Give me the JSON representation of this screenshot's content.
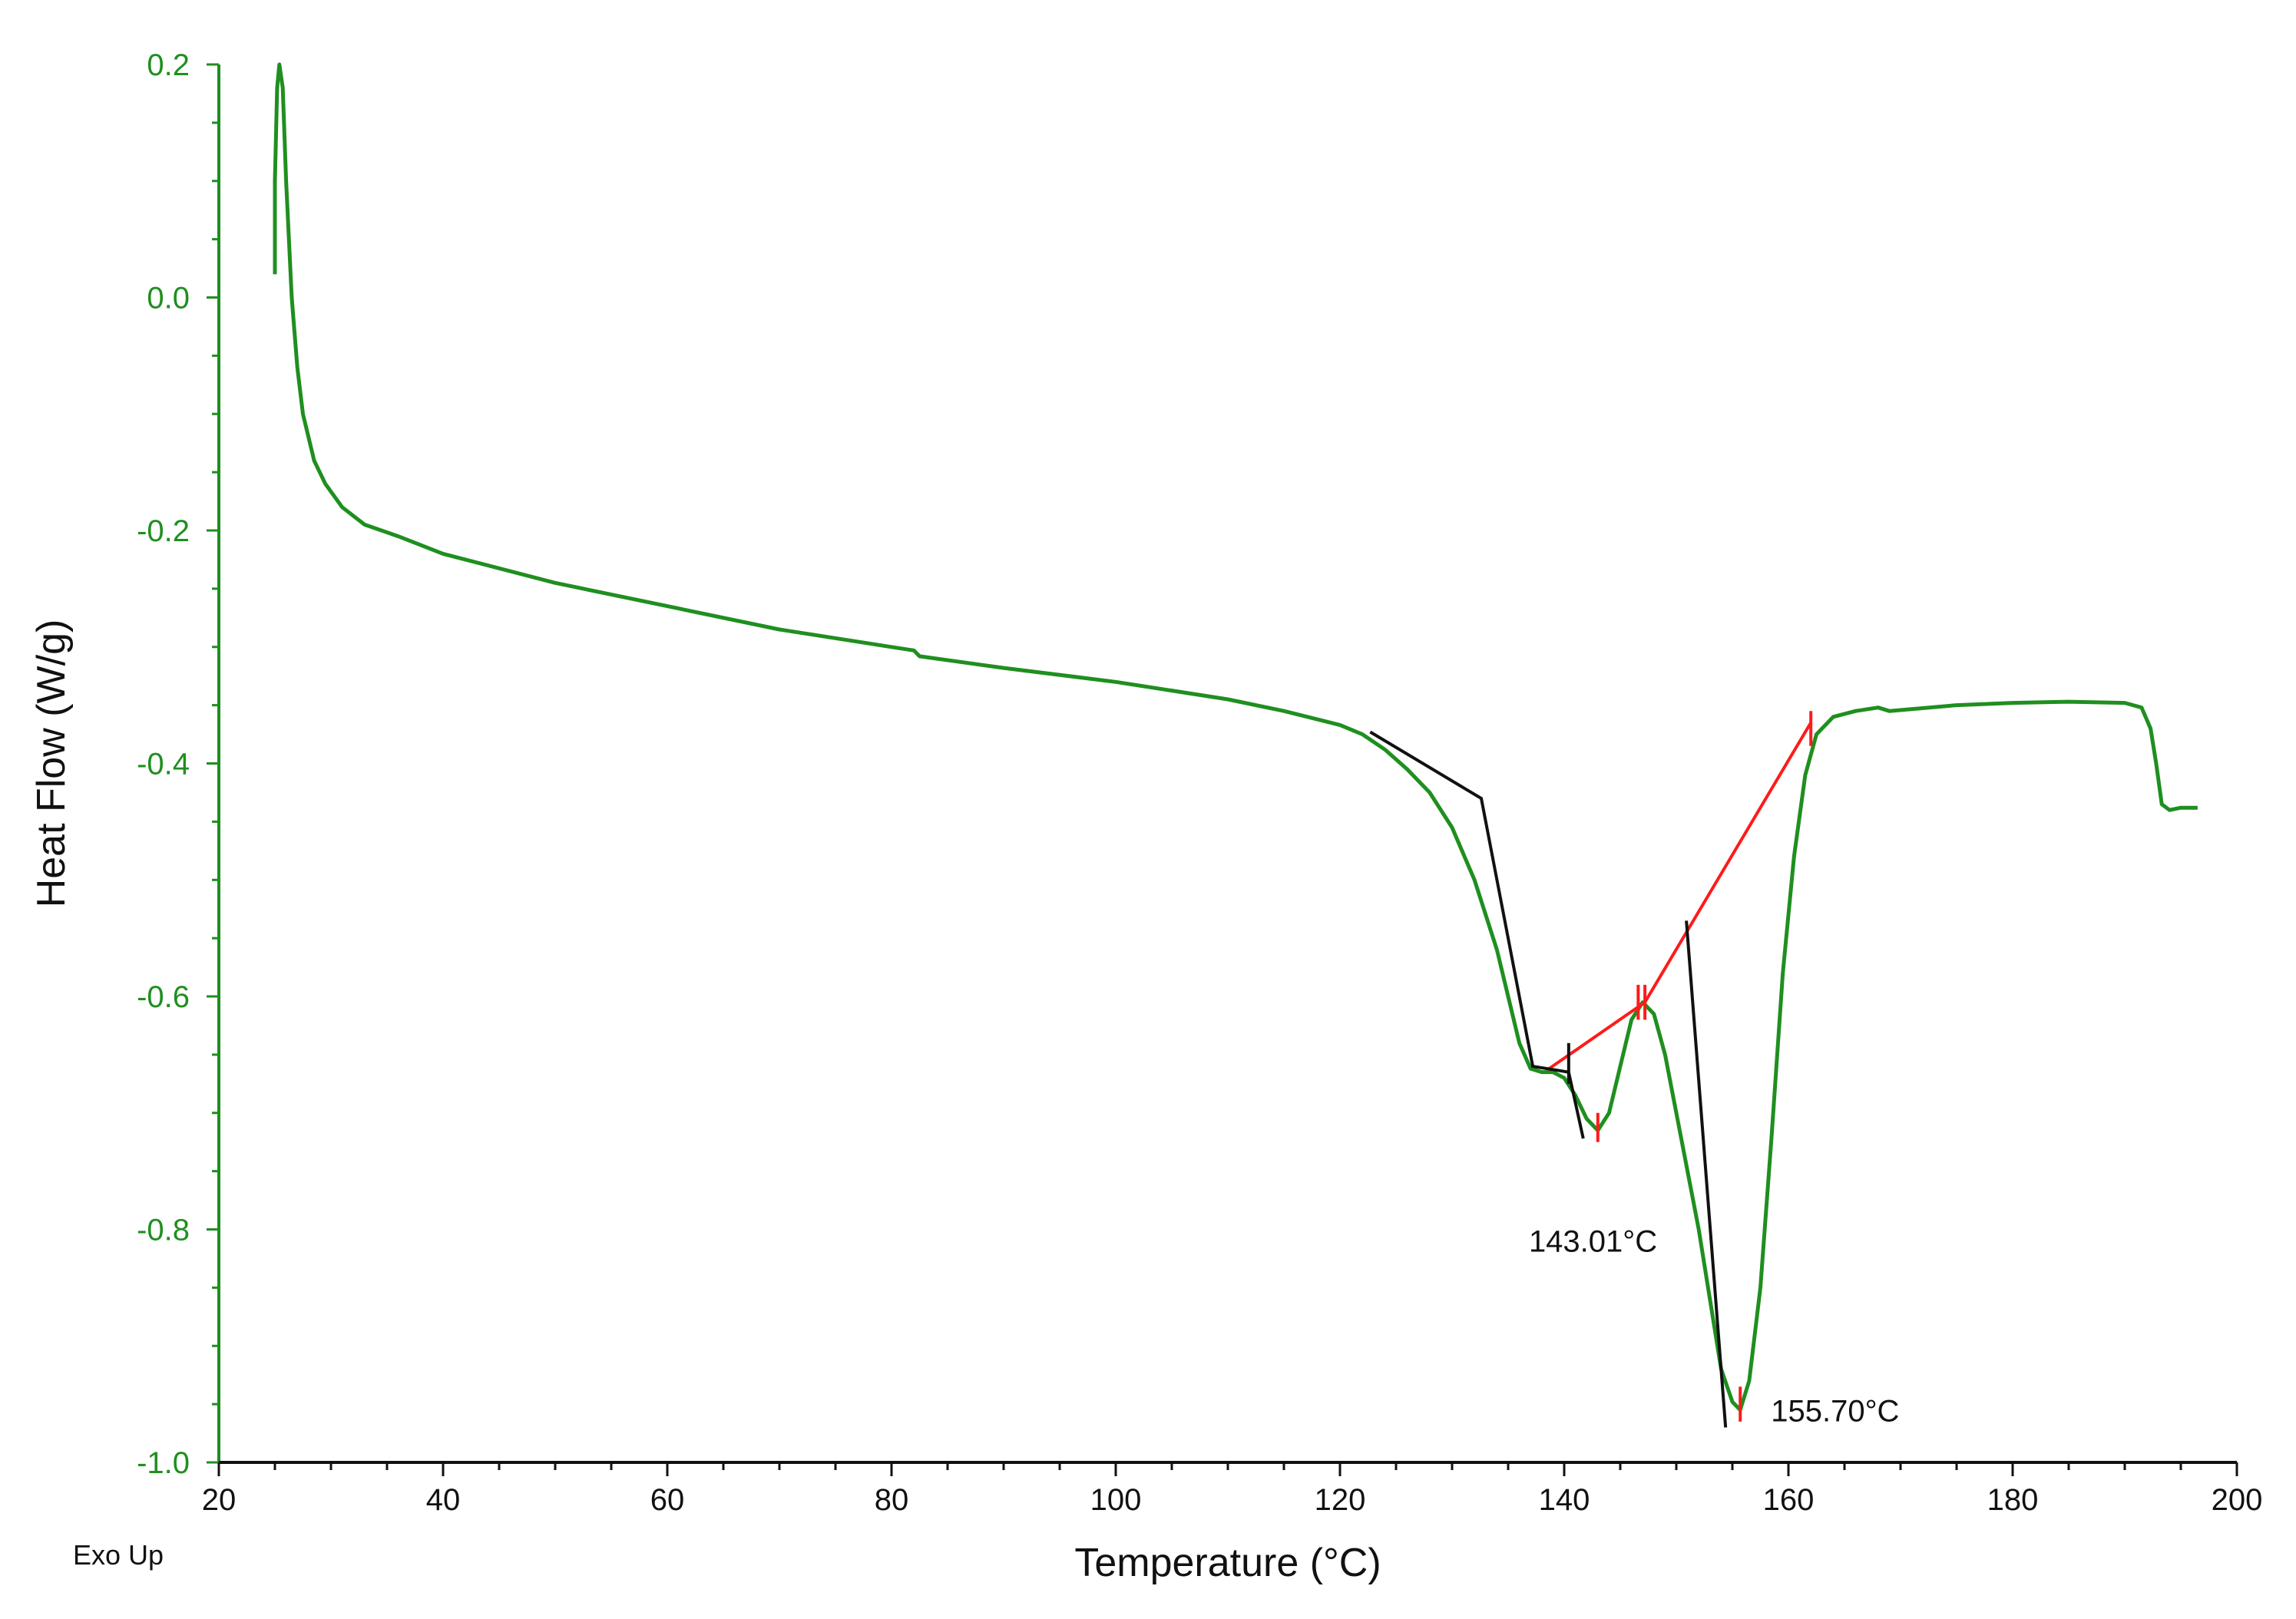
{
  "chart_data": {
    "type": "line",
    "title": "",
    "xlabel": "Temperature (°C)",
    "ylabel": "Heat Flow (W/g)",
    "corner_note": "Exo Up",
    "xlim": [
      20,
      200
    ],
    "ylim": [
      -1.0,
      0.2
    ],
    "x_ticks": [
      20,
      40,
      60,
      80,
      100,
      120,
      140,
      160,
      180,
      200
    ],
    "y_ticks": [
      0.2,
      0.0,
      -0.2,
      -0.4,
      -0.6,
      -0.8,
      -1.0
    ],
    "y_tick_labels": [
      "0.2",
      "0.0",
      "-0.2",
      "-0.4",
      "-0.6",
      "-0.8",
      "-1.0"
    ],
    "grid": false,
    "colors": {
      "curve": "#1f8f1f",
      "y_axis": "#1f8f1f",
      "x_axis": "#111111",
      "baseline": "#ff1a1a",
      "tangent": "#111111"
    },
    "series": [
      {
        "values_xy": [
          [
            25.0,
            0.02
          ],
          [
            25.0,
            0.1
          ],
          [
            25.2,
            0.18
          ],
          [
            25.4,
            0.2
          ],
          [
            25.7,
            0.18
          ],
          [
            26.0,
            0.1
          ],
          [
            26.5,
            0.0
          ],
          [
            27.0,
            -0.06
          ],
          [
            27.5,
            -0.1
          ],
          [
            28.5,
            -0.14
          ],
          [
            29.5,
            -0.16
          ],
          [
            31.0,
            -0.18
          ],
          [
            33.0,
            -0.195
          ],
          [
            36.0,
            -0.205
          ],
          [
            40.0,
            -0.22
          ],
          [
            50.0,
            -0.245
          ],
          [
            60.0,
            -0.265
          ],
          [
            70.0,
            -0.285
          ],
          [
            80.0,
            -0.3
          ],
          [
            82.0,
            -0.303
          ],
          [
            82.5,
            -0.308
          ],
          [
            90.0,
            -0.318
          ],
          [
            100.0,
            -0.33
          ],
          [
            110.0,
            -0.345
          ],
          [
            115.0,
            -0.355
          ],
          [
            120.0,
            -0.367
          ],
          [
            122.0,
            -0.375
          ],
          [
            124.0,
            -0.388
          ],
          [
            126.0,
            -0.405
          ],
          [
            128.0,
            -0.425
          ],
          [
            130.0,
            -0.455
          ],
          [
            132.0,
            -0.5
          ],
          [
            134.0,
            -0.56
          ],
          [
            135.0,
            -0.6
          ],
          [
            136.0,
            -0.64
          ],
          [
            137.0,
            -0.662
          ],
          [
            138.0,
            -0.665
          ],
          [
            139.0,
            -0.665
          ],
          [
            140.0,
            -0.67
          ],
          [
            141.0,
            -0.685
          ],
          [
            142.0,
            -0.705
          ],
          [
            143.0,
            -0.715
          ],
          [
            144.0,
            -0.7
          ],
          [
            145.0,
            -0.66
          ],
          [
            146.0,
            -0.62
          ],
          [
            147.0,
            -0.605
          ],
          [
            148.0,
            -0.615
          ],
          [
            149.0,
            -0.65
          ],
          [
            150.0,
            -0.7
          ],
          [
            151.0,
            -0.75
          ],
          [
            152.0,
            -0.8
          ],
          [
            153.0,
            -0.86
          ],
          [
            154.0,
            -0.92
          ],
          [
            155.0,
            -0.948
          ],
          [
            155.7,
            -0.955
          ],
          [
            156.5,
            -0.93
          ],
          [
            157.5,
            -0.85
          ],
          [
            158.5,
            -0.72
          ],
          [
            159.5,
            -0.58
          ],
          [
            160.5,
            -0.48
          ],
          [
            161.5,
            -0.41
          ],
          [
            162.5,
            -0.375
          ],
          [
            164.0,
            -0.36
          ],
          [
            166.0,
            -0.355
          ],
          [
            168.0,
            -0.352
          ],
          [
            169.0,
            -0.355
          ],
          [
            175.0,
            -0.35
          ],
          [
            180.0,
            -0.348
          ],
          [
            185.0,
            -0.347
          ],
          [
            190.0,
            -0.348
          ],
          [
            191.5,
            -0.352
          ],
          [
            192.3,
            -0.37
          ],
          [
            192.8,
            -0.4
          ],
          [
            193.3,
            -0.435
          ],
          [
            194.0,
            -0.44
          ],
          [
            195.0,
            -0.438
          ],
          [
            196.5,
            -0.438
          ]
        ]
      }
    ],
    "baseline_segments": [
      [
        [
          138.5,
          -0.663
        ],
        [
          147.2,
          -0.605
        ],
        [
          162.0,
          -0.365
        ]
      ]
    ],
    "tangent_lines": [
      [
        [
          122.7,
          -0.373
        ],
        [
          132.6,
          -0.43
        ],
        [
          137.2,
          -0.66
        ],
        [
          140.4,
          -0.665
        ],
        [
          141.7,
          -0.722
        ]
      ],
      [
        [
          150.9,
          -0.535
        ],
        [
          154.4,
          -0.97
        ]
      ]
    ],
    "tangent_tick_marks": [
      {
        "x": 140.4,
        "y1": -0.64,
        "y2": -0.675
      }
    ],
    "tick_marks_red": [
      {
        "x": 143.0,
        "y1": -0.7,
        "y2": -0.725
      },
      {
        "x": 146.6,
        "y1": -0.59,
        "y2": -0.62
      },
      {
        "x": 147.2,
        "y1": -0.59,
        "y2": -0.62
      },
      {
        "x": 155.7,
        "y1": -0.935,
        "y2": -0.965
      },
      {
        "x": 162.0,
        "y1": -0.355,
        "y2": -0.385
      }
    ],
    "annotations": [
      {
        "text": "143.01°C",
        "x": 143.01,
        "y": -0.75
      },
      {
        "text": "155.70°C",
        "x": 155.7,
        "y": -0.953
      }
    ]
  }
}
